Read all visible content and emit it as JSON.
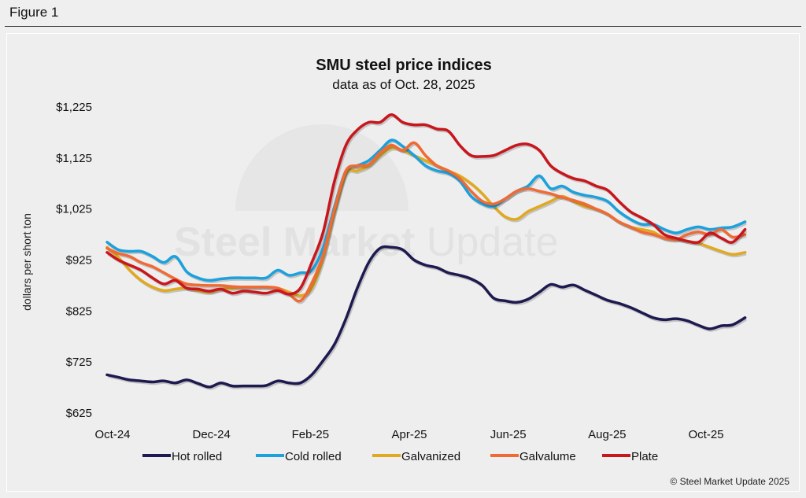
{
  "figure": {
    "label": "Figure 1"
  },
  "chart_data": {
    "type": "line",
    "title": "SMU steel price indices",
    "subtitle": "data as of Oct. 28, 2025",
    "xlabel": "",
    "ylabel": "dollars per short ton",
    "ylim": [
      625,
      1225
    ],
    "yticks": [
      625,
      725,
      825,
      925,
      1025,
      1125,
      1225
    ],
    "ytick_labels": [
      "$625",
      "$725",
      "$825",
      "$925",
      "$1,025",
      "$1,125",
      "$1,225"
    ],
    "xtick_labels": [
      "Oct-24",
      "Dec-24",
      "Feb-25",
      "Apr-25",
      "Jun-25",
      "Aug-25",
      "Oct-25"
    ],
    "xtick_months": [
      0,
      2,
      4,
      6,
      8,
      10,
      12
    ],
    "x_unit": "months since Oct-24",
    "x": [
      0,
      0.23,
      0.46,
      0.69,
      0.92,
      1.15,
      1.38,
      1.61,
      1.84,
      2.07,
      2.3,
      2.53,
      2.76,
      2.99,
      3.22,
      3.45,
      3.68,
      3.91,
      4.14,
      4.37,
      4.6,
      4.83,
      5.06,
      5.29,
      5.52,
      5.75,
      5.98,
      6.21,
      6.44,
      6.67,
      6.9,
      7.13,
      7.36,
      7.59,
      7.82,
      8.05,
      8.28,
      8.51,
      8.74,
      8.97,
      9.2,
      9.43,
      9.66,
      9.89,
      10.12,
      10.35,
      10.58,
      10.81,
      11.04,
      11.27,
      11.5,
      11.73,
      11.96,
      12.19,
      12.42,
      12.65,
      12.9
    ],
    "grid": false,
    "legend_position": "bottom",
    "series": [
      {
        "name": "Hot rolled",
        "color": "#1d1a4f",
        "values": [
          700,
          695,
          690,
          688,
          686,
          688,
          684,
          690,
          683,
          676,
          684,
          678,
          678,
          678,
          679,
          688,
          684,
          684,
          700,
          728,
          760,
          810,
          870,
          920,
          948,
          950,
          945,
          925,
          915,
          910,
          900,
          895,
          888,
          875,
          850,
          845,
          842,
          848,
          862,
          877,
          872,
          876,
          866,
          856,
          846,
          840,
          832,
          822,
          812,
          808,
          810,
          806,
          797,
          790,
          796,
          798,
          812
        ]
      },
      {
        "name": "Cold rolled",
        "color": "#1ba1dc",
        "values": [
          960,
          945,
          942,
          942,
          932,
          920,
          932,
          902,
          890,
          885,
          888,
          890,
          890,
          890,
          890,
          905,
          895,
          900,
          905,
          950,
          1030,
          1100,
          1110,
          1120,
          1140,
          1160,
          1148,
          1130,
          1110,
          1100,
          1095,
          1080,
          1050,
          1035,
          1030,
          1045,
          1060,
          1070,
          1090,
          1065,
          1070,
          1058,
          1052,
          1048,
          1040,
          1020,
          1005,
          995,
          995,
          985,
          978,
          985,
          990,
          985,
          988,
          990,
          1000
        ]
      },
      {
        "name": "Galvanized",
        "color": "#e0a91f",
        "values": [
          950,
          930,
          905,
          885,
          872,
          865,
          868,
          870,
          865,
          862,
          868,
          870,
          872,
          872,
          872,
          870,
          862,
          855,
          870,
          930,
          1020,
          1095,
          1100,
          1110,
          1130,
          1145,
          1140,
          1130,
          1120,
          1110,
          1100,
          1090,
          1075,
          1055,
          1030,
          1010,
          1005,
          1020,
          1030,
          1040,
          1050,
          1040,
          1030,
          1025,
          1015,
          1000,
          990,
          985,
          980,
          968,
          966,
          962,
          958,
          950,
          942,
          936,
          940
        ]
      },
      {
        "name": "Galvalume",
        "color": "#f06a35",
        "values": [
          948,
          938,
          932,
          920,
          912,
          900,
          888,
          878,
          876,
          875,
          875,
          873,
          872,
          872,
          872,
          870,
          858,
          845,
          880,
          935,
          1025,
          1100,
          1110,
          1112,
          1135,
          1150,
          1140,
          1155,
          1130,
          1110,
          1100,
          1085,
          1060,
          1040,
          1035,
          1045,
          1060,
          1065,
          1060,
          1055,
          1048,
          1042,
          1035,
          1025,
          1015,
          1000,
          990,
          980,
          975,
          968,
          965,
          975,
          980,
          975,
          985,
          970,
          975
        ]
      },
      {
        "name": "Plate",
        "color": "#c8161d",
        "values": [
          940,
          925,
          915,
          905,
          890,
          878,
          885,
          870,
          868,
          864,
          868,
          860,
          864,
          862,
          860,
          865,
          858,
          870,
          920,
          980,
          1080,
          1150,
          1180,
          1195,
          1195,
          1210,
          1195,
          1190,
          1190,
          1182,
          1178,
          1150,
          1130,
          1128,
          1130,
          1140,
          1150,
          1152,
          1140,
          1110,
          1095,
          1085,
          1080,
          1070,
          1062,
          1040,
          1020,
          1008,
          995,
          975,
          968,
          962,
          960,
          978,
          968,
          960,
          985
        ]
      }
    ],
    "watermark": "Steel Market Update",
    "credit": "© Steel Market Update 2025"
  }
}
